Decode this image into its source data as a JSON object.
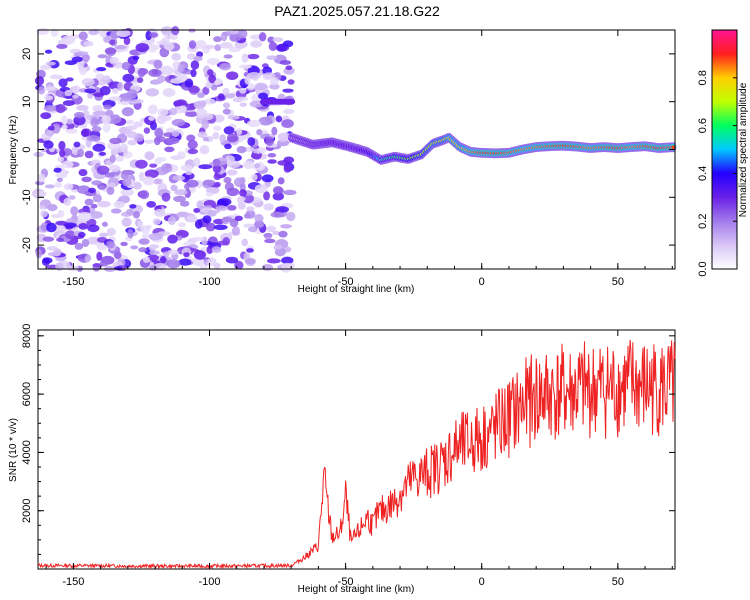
{
  "title": "PAZ1.2025.057.21.18.G22",
  "chart_data": [
    {
      "type": "heatmap",
      "xlabel": "Height of straight line (km)",
      "ylabel": "Frequency (Hz)",
      "xlim": [
        -163,
        71
      ],
      "ylim": [
        -25,
        25
      ],
      "xticks": [
        -150,
        -100,
        -50,
        0,
        50
      ],
      "yticks": [
        -20,
        -10,
        0,
        10,
        20
      ],
      "colorbar": {
        "label": "Normalized spectral amplitude",
        "range": [
          0,
          1
        ],
        "ticks": [
          0.0,
          0.2,
          0.4,
          0.6,
          0.8
        ],
        "colors": [
          "#ffffff",
          "#d9c6f7",
          "#a27bea",
          "#6a21e8",
          "#2400ff",
          "#00c8ff",
          "#00ff60",
          "#c0ff00",
          "#ffcf00",
          "#ff1f1f",
          "#ff1493"
        ]
      },
      "noise_region_x": [
        -163,
        -70
      ],
      "ridge": {
        "x": [
          -70,
          -62,
          -55,
          -48,
          -42,
          -37,
          -32,
          -27,
          -22,
          -18,
          -14,
          -12,
          -8,
          -4,
          0,
          5,
          10,
          15,
          20,
          25,
          30,
          35,
          40,
          45,
          50,
          55,
          60,
          65,
          71
        ],
        "y": [
          2.5,
          1.0,
          1.5,
          0.5,
          -0.5,
          -2.2,
          -1.5,
          -2.0,
          -1.0,
          1.2,
          2.0,
          2.5,
          0.5,
          -0.5,
          -0.7,
          -0.8,
          -0.7,
          0.0,
          0.5,
          0.7,
          0.8,
          0.6,
          0.3,
          0.5,
          0.3,
          0.5,
          0.7,
          0.3,
          0.5
        ],
        "amplitude": [
          0.15,
          0.25,
          0.3,
          0.3,
          0.35,
          0.55,
          0.6,
          0.65,
          0.7,
          0.75,
          0.75,
          0.8,
          0.8,
          0.85,
          0.9,
          0.9,
          0.88,
          0.85,
          0.85,
          0.88,
          0.9,
          0.88,
          0.85,
          0.88,
          0.9,
          0.85,
          0.88,
          0.9,
          0.88
        ]
      },
      "secondary_features": [
        {
          "x": [
            -80,
            -70
          ],
          "y": 10,
          "amplitude": 0.3
        }
      ]
    },
    {
      "type": "line",
      "xlabel": "Height of straight line (km)",
      "ylabel": "SNR (10 * v/v)",
      "xlim": [
        -163,
        71
      ],
      "ylim": [
        0,
        8200
      ],
      "xticks": [
        -150,
        -100,
        -50,
        0,
        50
      ],
      "yticks": [
        2000,
        4000,
        6000,
        8000
      ],
      "color": "#ee2222",
      "series": [
        {
          "x": [
            -163,
            -140,
            -120,
            -100,
            -80,
            -70,
            -65,
            -60,
            -58,
            -55,
            -52,
            -50,
            -48,
            -45,
            -42,
            -40,
            -38,
            -35,
            -32,
            -30,
            -25,
            -20,
            -15,
            -10,
            -5,
            0,
            5,
            10,
            15,
            20,
            25,
            30,
            35,
            40,
            45,
            50,
            55,
            60,
            65,
            70,
            71
          ],
          "y": [
            120,
            110,
            100,
            100,
            110,
            120,
            400,
            800,
            3100,
            1100,
            1200,
            2500,
            900,
            1300,
            1800,
            1500,
            1900,
            2100,
            2300,
            2600,
            3100,
            3300,
            3600,
            4100,
            4300,
            4500,
            4800,
            5200,
            5600,
            5900,
            6000,
            6050,
            6100,
            6150,
            6200,
            6200,
            6300,
            6200,
            6250,
            6150,
            6300
          ]
        }
      ]
    }
  ]
}
